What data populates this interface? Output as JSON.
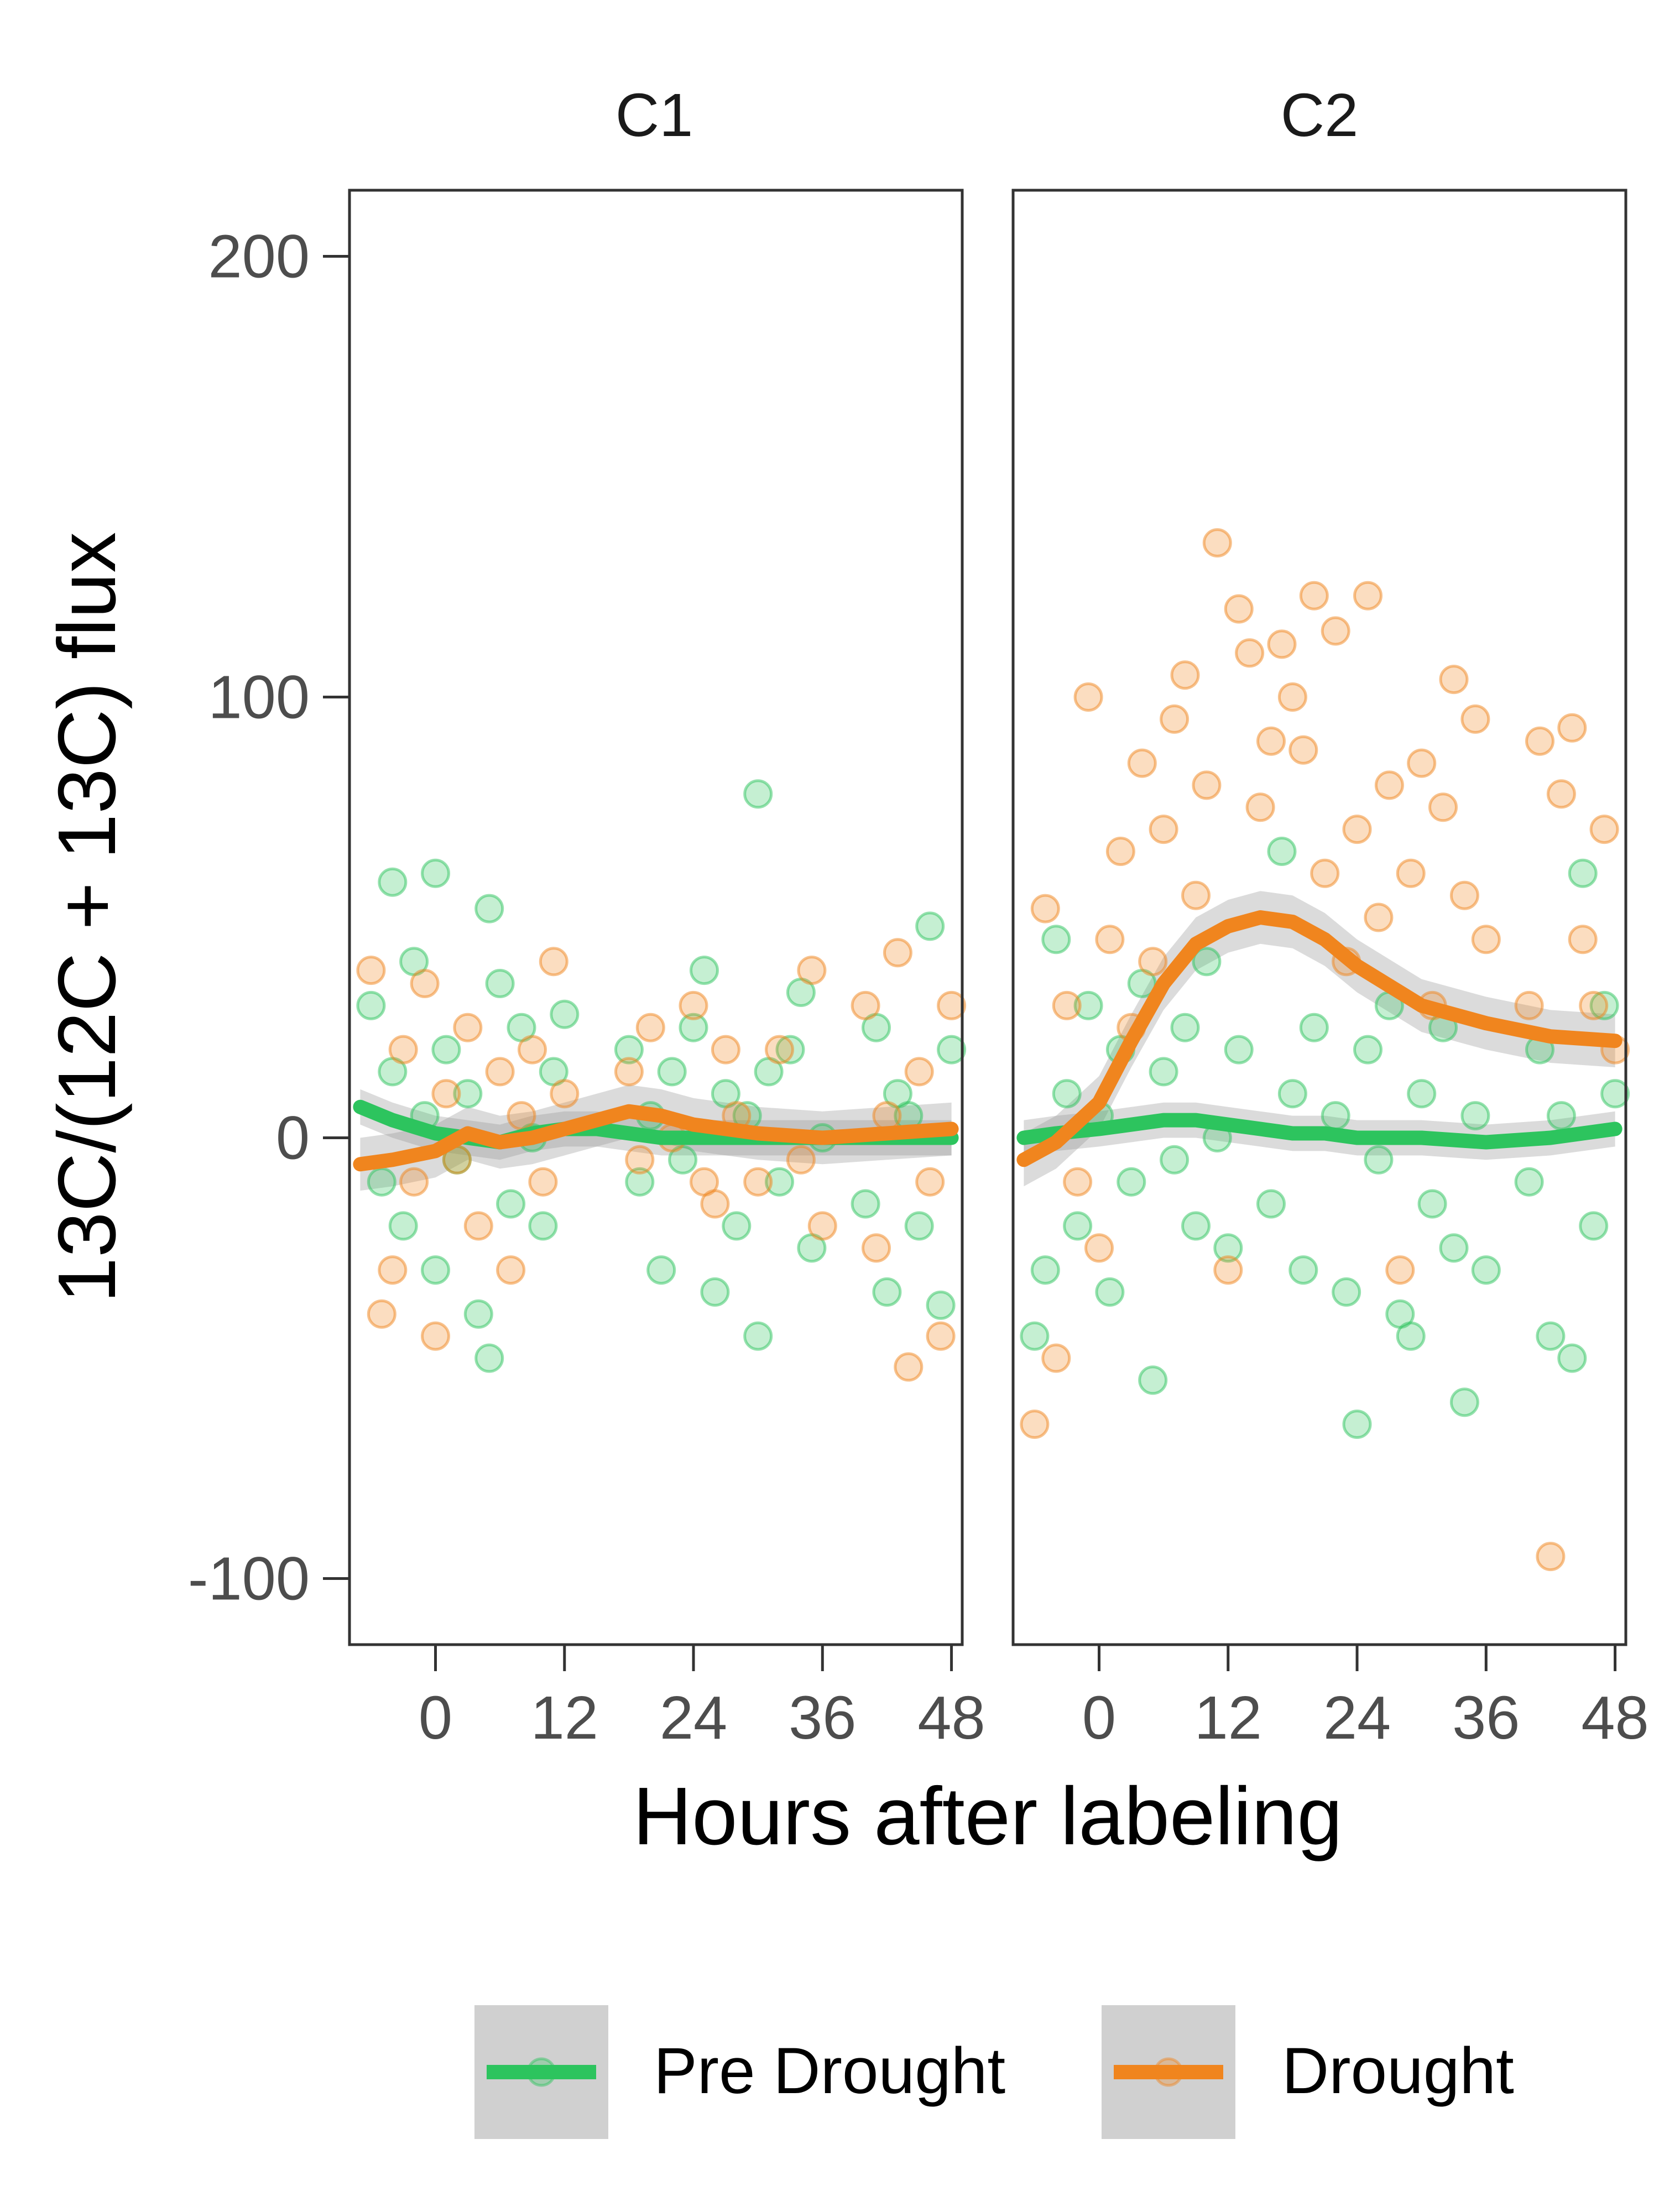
{
  "chart_data": {
    "type": "scatter",
    "xlabel": "Hours after labeling",
    "ylabel": "13C/(12C + 13C) flux",
    "xlim": [
      -8,
      49
    ],
    "ylim": [
      -115,
      215
    ],
    "x_ticks": [
      0,
      12,
      24,
      36,
      48
    ],
    "x_tick_labels": [
      "0",
      "12",
      "24",
      "36",
      "48"
    ],
    "y_ticks": [
      -100,
      0,
      100,
      200
    ],
    "y_tick_labels": [
      "-100",
      "0",
      "100",
      "200"
    ],
    "grid": false,
    "legend_position": "bottom",
    "series_meta": [
      {
        "name": "Pre Drought",
        "color": "#2DC45E"
      },
      {
        "name": "Drought",
        "color": "#F0851E"
      }
    ],
    "panels": [
      {
        "title": "C1",
        "smooth": {
          "x": [
            -7,
            -4,
            0,
            3,
            6,
            9,
            12,
            15,
            18,
            21,
            24,
            30,
            36,
            42,
            48
          ],
          "Pre Drought": [
            7,
            4,
            1,
            0,
            -1,
            1,
            2,
            2,
            1,
            0,
            0,
            0,
            0,
            0,
            0
          ],
          "Drought": [
            -6,
            -5,
            -3,
            1,
            -1,
            0,
            2,
            4,
            6,
            5,
            3,
            1,
            0,
            1,
            2
          ]
        },
        "points": {
          "Pre Drought": [
            [
              -6,
              30
            ],
            [
              -5,
              -10
            ],
            [
              -4,
              58
            ],
            [
              -4,
              15
            ],
            [
              -3,
              -20
            ],
            [
              -2,
              40
            ],
            [
              -1,
              5
            ],
            [
              0,
              60
            ],
            [
              0,
              -30
            ],
            [
              1,
              20
            ],
            [
              2,
              -5
            ],
            [
              3,
              10
            ],
            [
              4,
              -40
            ],
            [
              5,
              52
            ],
            [
              5,
              -50
            ],
            [
              6,
              35
            ],
            [
              7,
              -15
            ],
            [
              8,
              25
            ],
            [
              9,
              0
            ],
            [
              10,
              -20
            ],
            [
              11,
              15
            ],
            [
              12,
              28
            ],
            [
              18,
              20
            ],
            [
              19,
              -10
            ],
            [
              20,
              5
            ],
            [
              21,
              -30
            ],
            [
              22,
              15
            ],
            [
              23,
              -5
            ],
            [
              24,
              25
            ],
            [
              25,
              38
            ],
            [
              26,
              -35
            ],
            [
              27,
              10
            ],
            [
              28,
              -20
            ],
            [
              29,
              5
            ],
            [
              30,
              78
            ],
            [
              30,
              -45
            ],
            [
              31,
              15
            ],
            [
              32,
              -10
            ],
            [
              33,
              20
            ],
            [
              34,
              33
            ],
            [
              35,
              -25
            ],
            [
              36,
              0
            ],
            [
              40,
              -15
            ],
            [
              41,
              25
            ],
            [
              42,
              -35
            ],
            [
              43,
              10
            ],
            [
              44,
              5
            ],
            [
              45,
              -20
            ],
            [
              46,
              48
            ],
            [
              47,
              -38
            ],
            [
              48,
              20
            ]
          ],
          "Drought": [
            [
              -6,
              38
            ],
            [
              -5,
              -40
            ],
            [
              -4,
              -30
            ],
            [
              -3,
              20
            ],
            [
              -2,
              -10
            ],
            [
              -1,
              35
            ],
            [
              0,
              -45
            ],
            [
              1,
              10
            ],
            [
              2,
              -5
            ],
            [
              3,
              25
            ],
            [
              4,
              -20
            ],
            [
              6,
              15
            ],
            [
              7,
              -30
            ],
            [
              8,
              5
            ],
            [
              9,
              20
            ],
            [
              10,
              -10
            ],
            [
              11,
              40
            ],
            [
              12,
              10
            ],
            [
              18,
              15
            ],
            [
              19,
              -5
            ],
            [
              20,
              25
            ],
            [
              22,
              0
            ],
            [
              24,
              30
            ],
            [
              25,
              -10
            ],
            [
              26,
              -15
            ],
            [
              27,
              20
            ],
            [
              28,
              5
            ],
            [
              30,
              -10
            ],
            [
              32,
              20
            ],
            [
              34,
              -5
            ],
            [
              35,
              38
            ],
            [
              36,
              -20
            ],
            [
              40,
              30
            ],
            [
              41,
              -25
            ],
            [
              42,
              5
            ],
            [
              43,
              42
            ],
            [
              44,
              -52
            ],
            [
              45,
              15
            ],
            [
              46,
              -10
            ],
            [
              47,
              -45
            ],
            [
              48,
              30
            ]
          ]
        }
      },
      {
        "title": "C2",
        "smooth": {
          "x": [
            -7,
            -4,
            0,
            3,
            6,
            9,
            12,
            15,
            18,
            21,
            24,
            30,
            36,
            42,
            48
          ],
          "Pre Drought": [
            0,
            1,
            2,
            3,
            4,
            4,
            3,
            2,
            1,
            1,
            0,
            0,
            -1,
            0,
            2
          ],
          "Drought": [
            -5,
            -1,
            8,
            22,
            35,
            44,
            48,
            50,
            49,
            45,
            39,
            30,
            26,
            23,
            22
          ]
        },
        "points": {
          "Pre Drought": [
            [
              -6,
              -45
            ],
            [
              -5,
              -30
            ],
            [
              -4,
              45
            ],
            [
              -3,
              10
            ],
            [
              -2,
              -20
            ],
            [
              -1,
              30
            ],
            [
              0,
              5
            ],
            [
              1,
              -35
            ],
            [
              2,
              20
            ],
            [
              3,
              -10
            ],
            [
              4,
              35
            ],
            [
              5,
              -55
            ],
            [
              6,
              15
            ],
            [
              7,
              -5
            ],
            [
              8,
              25
            ],
            [
              9,
              -20
            ],
            [
              10,
              40
            ],
            [
              11,
              0
            ],
            [
              12,
              -25
            ],
            [
              13,
              20
            ],
            [
              16,
              -15
            ],
            [
              17,
              65
            ],
            [
              18,
              10
            ],
            [
              19,
              -30
            ],
            [
              20,
              25
            ],
            [
              22,
              5
            ],
            [
              23,
              -35
            ],
            [
              24,
              -65
            ],
            [
              25,
              20
            ],
            [
              26,
              -5
            ],
            [
              27,
              30
            ],
            [
              28,
              -40
            ],
            [
              29,
              -45
            ],
            [
              30,
              10
            ],
            [
              31,
              -15
            ],
            [
              32,
              25
            ],
            [
              33,
              -25
            ],
            [
              34,
              -60
            ],
            [
              35,
              5
            ],
            [
              36,
              -30
            ],
            [
              40,
              -10
            ],
            [
              41,
              20
            ],
            [
              42,
              -45
            ],
            [
              43,
              5
            ],
            [
              44,
              -50
            ],
            [
              45,
              60
            ],
            [
              46,
              -20
            ],
            [
              47,
              30
            ],
            [
              48,
              10
            ]
          ],
          "Drought": [
            [
              -6,
              -65
            ],
            [
              -5,
              52
            ],
            [
              -4,
              -50
            ],
            [
              -3,
              30
            ],
            [
              -2,
              -10
            ],
            [
              -1,
              100
            ],
            [
              0,
              -25
            ],
            [
              1,
              45
            ],
            [
              2,
              65
            ],
            [
              3,
              25
            ],
            [
              4,
              85
            ],
            [
              5,
              40
            ],
            [
              6,
              70
            ],
            [
              7,
              95
            ],
            [
              8,
              105
            ],
            [
              9,
              55
            ],
            [
              10,
              80
            ],
            [
              11,
              135
            ],
            [
              12,
              -30
            ],
            [
              13,
              120
            ],
            [
              14,
              110
            ],
            [
              15,
              75
            ],
            [
              16,
              90
            ],
            [
              17,
              112
            ],
            [
              18,
              100
            ],
            [
              19,
              88
            ],
            [
              20,
              123
            ],
            [
              21,
              60
            ],
            [
              22,
              115
            ],
            [
              23,
              40
            ],
            [
              24,
              70
            ],
            [
              25,
              123
            ],
            [
              26,
              50
            ],
            [
              27,
              80
            ],
            [
              28,
              -30
            ],
            [
              29,
              60
            ],
            [
              30,
              85
            ],
            [
              31,
              30
            ],
            [
              32,
              75
            ],
            [
              33,
              104
            ],
            [
              34,
              55
            ],
            [
              35,
              95
            ],
            [
              36,
              45
            ],
            [
              40,
              30
            ],
            [
              41,
              90
            ],
            [
              42,
              -95
            ],
            [
              43,
              78
            ],
            [
              44,
              93
            ],
            [
              45,
              45
            ],
            [
              46,
              30
            ],
            [
              47,
              70
            ],
            [
              48,
              20
            ]
          ]
        }
      }
    ]
  }
}
